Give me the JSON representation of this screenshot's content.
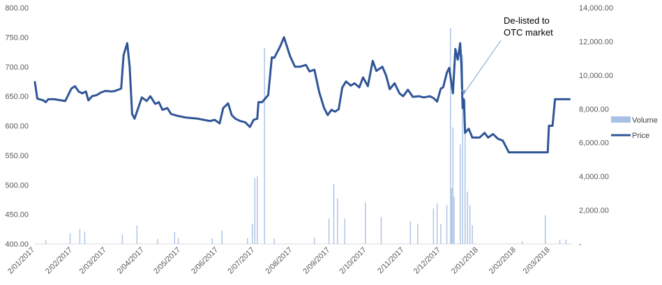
{
  "chart_data": {
    "type": "line",
    "title": "",
    "xlabel": "",
    "ylabel": "",
    "y2label": "",
    "colors": {
      "price": "#2F5597",
      "volume": "#A9C1E4",
      "axis_text": "#595959"
    },
    "yaxis_left": {
      "min": 400,
      "max": 800,
      "ticks": [
        "400.00",
        "450.00",
        "500.00",
        "550.00",
        "600.00",
        "650.00",
        "700.00",
        "750.00",
        "800.00"
      ]
    },
    "yaxis_right": {
      "min": 0,
      "max": 14000,
      "ticks": [
        "-",
        "2,000.00",
        "4,000.00",
        "6,000.00",
        "8,000.00",
        "10,000.00",
        "12,000.00",
        "14,000.00"
      ]
    },
    "xaxis": {
      "ticks": [
        "2/01/2017",
        "2/02/2017",
        "2/03/2017",
        "2/04/2017",
        "2/05/2017",
        "2/06/2017",
        "2/07/2017",
        "2/08/2017",
        "2/09/2017",
        "2/10/2017",
        "2/11/2017",
        "2/12/2017",
        "2/01/2018",
        "2/02/2018",
        "2/03/2018"
      ]
    },
    "legend": {
      "position": "right",
      "items": [
        {
          "key": "volume",
          "label": "Volume"
        },
        {
          "key": "price",
          "label": "Price"
        }
      ]
    },
    "annotation": {
      "lines": [
        "De-listed to",
        "OTC market"
      ],
      "date": "2017-12-20"
    },
    "series": [
      {
        "name": "Price",
        "axis": "left",
        "points": [
          [
            "2017-01-02",
            674
          ],
          [
            "2017-01-04",
            646
          ],
          [
            "2017-01-09",
            643
          ],
          [
            "2017-01-11",
            640
          ],
          [
            "2017-01-13",
            645
          ],
          [
            "2017-01-18",
            645
          ],
          [
            "2017-01-24",
            643
          ],
          [
            "2017-01-27",
            642
          ],
          [
            "2017-02-01",
            663
          ],
          [
            "2017-02-04",
            667
          ],
          [
            "2017-02-07",
            658
          ],
          [
            "2017-02-10",
            655
          ],
          [
            "2017-02-13",
            658
          ],
          [
            "2017-02-15",
            643
          ],
          [
            "2017-02-18",
            650
          ],
          [
            "2017-02-22",
            652
          ],
          [
            "2017-02-25",
            656
          ],
          [
            "2017-03-01",
            659
          ],
          [
            "2017-03-06",
            658
          ],
          [
            "2017-03-09",
            659
          ],
          [
            "2017-03-14",
            663
          ],
          [
            "2017-03-16",
            720
          ],
          [
            "2017-03-19",
            740
          ],
          [
            "2017-03-21",
            700
          ],
          [
            "2017-03-23",
            620
          ],
          [
            "2017-03-25",
            612
          ],
          [
            "2017-03-28",
            630
          ],
          [
            "2017-03-31",
            648
          ],
          [
            "2017-04-04",
            642
          ],
          [
            "2017-04-07",
            650
          ],
          [
            "2017-04-11",
            637
          ],
          [
            "2017-04-14",
            640
          ],
          [
            "2017-04-17",
            627
          ],
          [
            "2017-04-21",
            630
          ],
          [
            "2017-04-24",
            620
          ],
          [
            "2017-04-29",
            617
          ],
          [
            "2017-05-06",
            614
          ],
          [
            "2017-05-16",
            612
          ],
          [
            "2017-05-21",
            610
          ],
          [
            "2017-05-26",
            608
          ],
          [
            "2017-05-30",
            610
          ],
          [
            "2017-06-03",
            604
          ],
          [
            "2017-06-06",
            630
          ],
          [
            "2017-06-10",
            638
          ],
          [
            "2017-06-13",
            618
          ],
          [
            "2017-06-16",
            612
          ],
          [
            "2017-06-20",
            608
          ],
          [
            "2017-06-24",
            606
          ],
          [
            "2017-06-28",
            598
          ],
          [
            "2017-07-01",
            610
          ],
          [
            "2017-07-04",
            612
          ],
          [
            "2017-07-05",
            640
          ],
          [
            "2017-07-08",
            640
          ],
          [
            "2017-07-13",
            652
          ],
          [
            "2017-07-16",
            716
          ],
          [
            "2017-07-18",
            715
          ],
          [
            "2017-07-23",
            735
          ],
          [
            "2017-07-26",
            750
          ],
          [
            "2017-07-31",
            718
          ],
          [
            "2017-08-04",
            700
          ],
          [
            "2017-08-08",
            700
          ],
          [
            "2017-08-13",
            703
          ],
          [
            "2017-08-16",
            692
          ],
          [
            "2017-08-20",
            695
          ],
          [
            "2017-08-24",
            657
          ],
          [
            "2017-08-28",
            630
          ],
          [
            "2017-08-31",
            618
          ],
          [
            "2017-09-03",
            627
          ],
          [
            "2017-09-06",
            624
          ],
          [
            "2017-09-09",
            628
          ],
          [
            "2017-09-12",
            665
          ],
          [
            "2017-09-15",
            675
          ],
          [
            "2017-09-19",
            668
          ],
          [
            "2017-09-22",
            672
          ],
          [
            "2017-09-26",
            665
          ],
          [
            "2017-09-29",
            682
          ],
          [
            "2017-10-03",
            667
          ],
          [
            "2017-10-07",
            710
          ],
          [
            "2017-10-10",
            693
          ],
          [
            "2017-10-15",
            700
          ],
          [
            "2017-10-18",
            685
          ],
          [
            "2017-10-21",
            662
          ],
          [
            "2017-10-25",
            672
          ],
          [
            "2017-10-29",
            655
          ],
          [
            "2017-11-01",
            650
          ],
          [
            "2017-11-05",
            661
          ],
          [
            "2017-11-09",
            649
          ],
          [
            "2017-11-14",
            650
          ],
          [
            "2017-11-18",
            648
          ],
          [
            "2017-11-23",
            650
          ],
          [
            "2017-11-26",
            647
          ],
          [
            "2017-11-29",
            641
          ],
          [
            "2017-12-02",
            663
          ],
          [
            "2017-12-04",
            665
          ],
          [
            "2017-12-07",
            690
          ],
          [
            "2017-12-09",
            698
          ],
          [
            "2017-12-12",
            655
          ],
          [
            "2017-12-14",
            730
          ],
          [
            "2017-12-16",
            712
          ],
          [
            "2017-12-18",
            740
          ],
          [
            "2017-12-19",
            700
          ],
          [
            "2017-12-20",
            630
          ],
          [
            "2017-12-21",
            645
          ],
          [
            "2017-12-22",
            588
          ],
          [
            "2017-12-25",
            595
          ],
          [
            "2017-12-28",
            580
          ],
          [
            "2018-01-03",
            580
          ],
          [
            "2018-01-07",
            588
          ],
          [
            "2018-01-10",
            580
          ],
          [
            "2018-01-14",
            586
          ],
          [
            "2018-01-18",
            578
          ],
          [
            "2018-01-22",
            575
          ],
          [
            "2018-01-27",
            555
          ],
          [
            "2018-01-30",
            555
          ],
          [
            "2018-02-28",
            555
          ],
          [
            "2018-03-01",
            600
          ],
          [
            "2018-03-04",
            600
          ],
          [
            "2018-03-06",
            645
          ],
          [
            "2018-03-15",
            645
          ],
          [
            "2018-03-18",
            645
          ]
        ]
      },
      {
        "name": "Volume",
        "axis": "right",
        "points": [
          [
            "2017-01-11",
            230
          ],
          [
            "2017-01-31",
            640
          ],
          [
            "2017-02-08",
            890
          ],
          [
            "2017-02-12",
            730
          ],
          [
            "2017-03-15",
            560
          ],
          [
            "2017-03-27",
            1100
          ],
          [
            "2017-04-13",
            290
          ],
          [
            "2017-04-27",
            700
          ],
          [
            "2017-04-30",
            340
          ],
          [
            "2017-05-28",
            340
          ],
          [
            "2017-06-05",
            780
          ],
          [
            "2017-06-26",
            340
          ],
          [
            "2017-06-30",
            1180
          ],
          [
            "2017-07-02",
            3900
          ],
          [
            "2017-07-04",
            4000
          ],
          [
            "2017-07-10",
            11600
          ],
          [
            "2017-07-18",
            310
          ],
          [
            "2017-08-20",
            370
          ],
          [
            "2017-09-01",
            1500
          ],
          [
            "2017-09-05",
            3560
          ],
          [
            "2017-09-08",
            2700
          ],
          [
            "2017-09-14",
            1500
          ],
          [
            "2017-10-01",
            2460
          ],
          [
            "2017-10-14",
            1600
          ],
          [
            "2017-11-07",
            1350
          ],
          [
            "2017-11-13",
            1200
          ],
          [
            "2017-11-26",
            2100
          ],
          [
            "2017-11-29",
            2400
          ],
          [
            "2017-12-02",
            1170
          ],
          [
            "2017-12-07",
            2300
          ],
          [
            "2017-12-10",
            12800
          ],
          [
            "2017-12-11",
            3300
          ],
          [
            "2017-12-12",
            6900
          ],
          [
            "2017-12-13",
            2800
          ],
          [
            "2017-12-18",
            5900
          ],
          [
            "2017-12-20",
            11200
          ],
          [
            "2017-12-22",
            8500
          ],
          [
            "2017-12-24",
            3100
          ],
          [
            "2017-12-26",
            2300
          ],
          [
            "2017-12-28",
            1100
          ],
          [
            "2018-02-07",
            150
          ],
          [
            "2018-02-26",
            1700
          ],
          [
            "2018-03-10",
            250
          ],
          [
            "2018-03-15",
            250
          ]
        ]
      }
    ]
  }
}
